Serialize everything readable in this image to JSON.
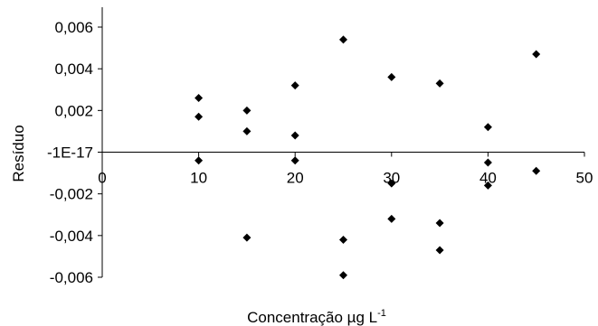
{
  "chart_data": {
    "type": "scatter",
    "title": "",
    "xlabel": "Concentração µg L",
    "xlabel_superscript": "-1",
    "ylabel": "Resíduo",
    "xlim": [
      0,
      50
    ],
    "ylim": [
      -0.006,
      0.006
    ],
    "x_ticks": [
      0,
      10,
      20,
      30,
      40,
      50
    ],
    "x_tick_labels": [
      "0",
      "10",
      "20",
      "30",
      "40",
      "50"
    ],
    "y_ticks": [
      0.006,
      0.004,
      0.002,
      0,
      -0.002,
      -0.004,
      -0.006
    ],
    "y_tick_labels": [
      "0,006",
      "0,004",
      "0,002",
      "-1E-17",
      "-0,002",
      "-0,004",
      "-0,006"
    ],
    "grid": false,
    "legend": "none",
    "marker": "diamond",
    "marker_color": "#000000",
    "series": [
      {
        "points": [
          {
            "x": 10,
            "y": 0.0026
          },
          {
            "x": 10,
            "y": 0.0017
          },
          {
            "x": 10,
            "y": -0.0004
          },
          {
            "x": 15,
            "y": 0.002
          },
          {
            "x": 15,
            "y": 0.001
          },
          {
            "x": 15,
            "y": -0.0041
          },
          {
            "x": 20,
            "y": 0.0032
          },
          {
            "x": 20,
            "y": 0.0008
          },
          {
            "x": 20,
            "y": -0.0004
          },
          {
            "x": 25,
            "y": 0.0054
          },
          {
            "x": 25,
            "y": -0.0042
          },
          {
            "x": 25,
            "y": -0.0059
          },
          {
            "x": 30,
            "y": 0.0036
          },
          {
            "x": 30,
            "y": -0.0015
          },
          {
            "x": 30,
            "y": -0.0032
          },
          {
            "x": 35,
            "y": 0.0033
          },
          {
            "x": 35,
            "y": -0.0034
          },
          {
            "x": 35,
            "y": -0.0047
          },
          {
            "x": 40,
            "y": 0.0012
          },
          {
            "x": 40,
            "y": -0.0005
          },
          {
            "x": 40,
            "y": -0.0016
          },
          {
            "x": 45,
            "y": 0.0047
          },
          {
            "x": 45,
            "y": -0.0009
          }
        ]
      }
    ]
  }
}
